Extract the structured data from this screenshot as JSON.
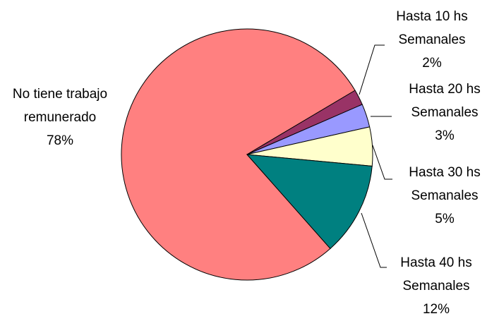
{
  "chart_data": {
    "type": "pie",
    "categories": [
      "No tiene trabajo remunerado",
      "Hasta 10 hs Semanales",
      "Hasta 20 hs Semanales",
      "Hasta 30 hs Semanales",
      "Hasta 40 hs Semanales"
    ],
    "values": [
      78,
      2,
      3,
      5,
      12
    ],
    "value_labels": [
      "78%",
      "2%",
      "3%",
      "5%",
      "12%"
    ],
    "colors": [
      "#FF8080",
      "#993366",
      "#9999FF",
      "#FFFFCC",
      "#008080"
    ]
  }
}
